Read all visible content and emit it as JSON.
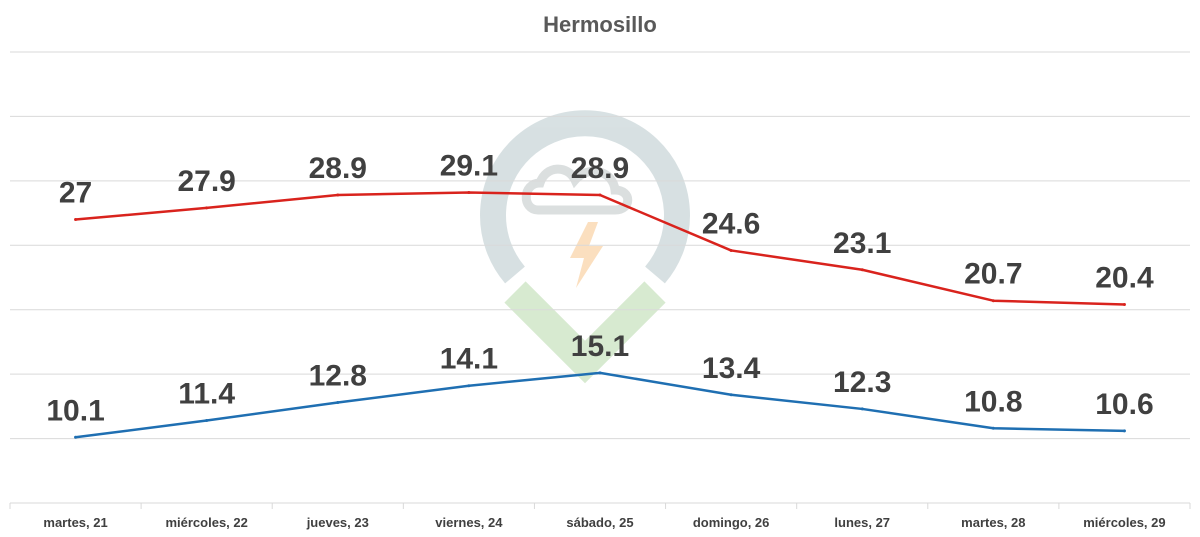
{
  "chart_data": {
    "type": "line",
    "title": "Hermosillo",
    "categories": [
      "martes, 21",
      "miércoles, 22",
      "jueves, 23",
      "viernes, 24",
      "sábado, 25",
      "domingo, 26",
      "lunes, 27",
      "martes, 28",
      "miércoles, 29"
    ],
    "series": [
      {
        "values": [
          27,
          27.9,
          28.9,
          29.1,
          28.9,
          24.6,
          23.1,
          20.7,
          20.4
        ],
        "color": "#d9231d"
      },
      {
        "values": [
          10.1,
          11.4,
          12.8,
          14.1,
          15.1,
          13.4,
          12.3,
          10.8,
          10.6
        ],
        "color": "#1f6fb2"
      }
    ],
    "ylim": [
      5,
      40
    ],
    "grid": true,
    "legend": "none",
    "watermark": "logo-icon"
  }
}
